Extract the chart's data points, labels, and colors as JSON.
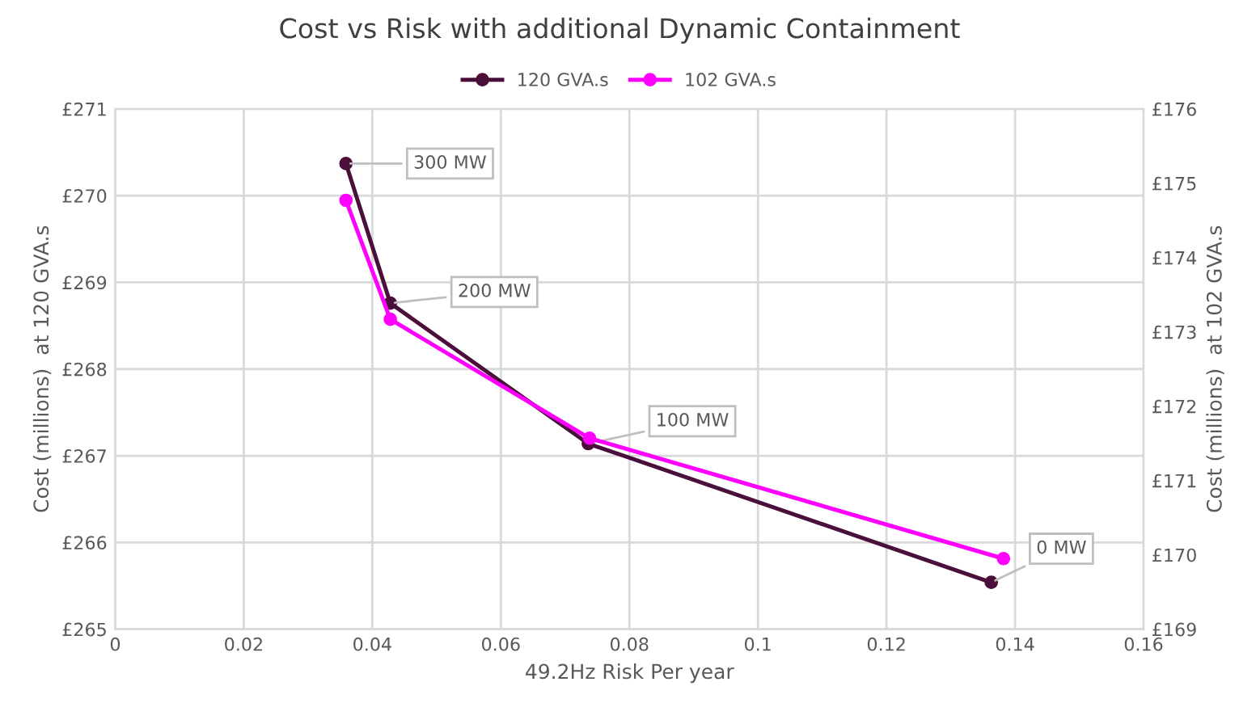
{
  "chart_data": {
    "type": "line",
    "title": "Cost vs Risk with additional Dynamic Containment",
    "xlabel": "49.2Hz Risk Per year",
    "ylabel": "Cost (millions)  at 120 GVA.s",
    "y2label": "Cost (millions)  at 102 GVA.s",
    "series": [
      {
        "name": "120 GVA.s",
        "color": "#4a0f3a",
        "x": [
          0.0359,
          0.0428,
          0.0736,
          0.1363
        ],
        "values": [
          270.37,
          268.76,
          267.14,
          265.54
        ]
      },
      {
        "name": "102 GVA.s",
        "color": "#ff00ff",
        "axis": "y2",
        "x": [
          0.0359,
          0.0428,
          0.0738,
          0.1382
        ],
        "values": [
          174.77,
          173.17,
          171.57,
          169.95
        ]
      }
    ],
    "xlim": [
      0,
      0.16
    ],
    "xticks": [
      0,
      0.02,
      0.04,
      0.06,
      0.08,
      0.1,
      0.12,
      0.14,
      0.16
    ],
    "ylim": [
      265,
      271
    ],
    "yticks": [
      {
        "value": 265,
        "label": "£265"
      },
      {
        "value": 266,
        "label": "£266"
      },
      {
        "value": 267,
        "label": "£267"
      },
      {
        "value": 268,
        "label": "£268"
      },
      {
        "value": 269,
        "label": "£269"
      },
      {
        "value": 270,
        "label": "£270"
      },
      {
        "value": 271,
        "label": "£271"
      }
    ],
    "y2lim": [
      169,
      176
    ],
    "y2ticks": [
      {
        "value": 169,
        "label": "£169"
      },
      {
        "value": 170,
        "label": "£170"
      },
      {
        "value": 171,
        "label": "£171"
      },
      {
        "value": 172,
        "label": "£172"
      },
      {
        "value": 173,
        "label": "£173"
      },
      {
        "value": 174,
        "label": "£174"
      },
      {
        "value": 175,
        "label": "£175"
      },
      {
        "value": 176,
        "label": "£176"
      }
    ],
    "annotations": [
      {
        "text": "300 MW",
        "x": 0.0359,
        "y": 270.37
      },
      {
        "text": "200 MW",
        "x": 0.0428,
        "y": 268.76
      },
      {
        "text": "100 MW",
        "x": 0.0736,
        "y": 267.14
      },
      {
        "text": "0 MW",
        "x": 0.1363,
        "y": 265.54
      }
    ],
    "grid": true,
    "legend": "top",
    "marker": "circle",
    "line_style": "solid"
  }
}
